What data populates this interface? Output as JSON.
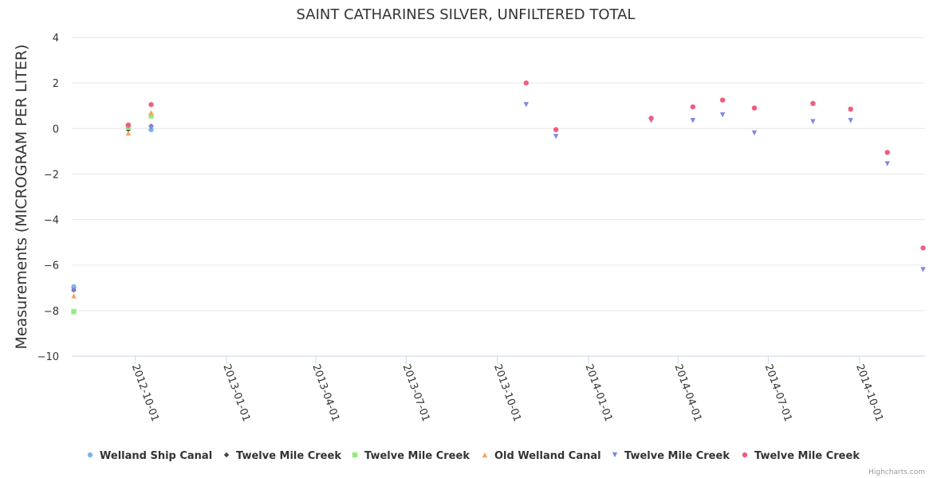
{
  "credits": "Highcharts.com",
  "chart_data": {
    "type": "scatter",
    "title": "SAINT CATHARINES SILVER, UNFILTERED TOTAL",
    "ylabel": "Measurements (MICROGRAM PER LITER)",
    "xlabel": "",
    "ylim": [
      -10,
      4
    ],
    "y_ticks": [
      4,
      2,
      0,
      -2,
      -4,
      -6,
      -8,
      -10
    ],
    "y_tick_labels": [
      "4",
      "2",
      "0",
      "−2",
      "−4",
      "−6",
      "−8",
      "−10"
    ],
    "x_range": [
      "2012-07-29",
      "2014-12-06"
    ],
    "x_ticks": [
      "2012-10-01",
      "2013-01-01",
      "2013-04-01",
      "2013-07-01",
      "2013-10-01",
      "2014-01-01",
      "2014-04-01",
      "2014-07-01",
      "2014-10-01"
    ],
    "grid": true,
    "legend_position": "bottom",
    "series": [
      {
        "name": "Welland Ship Canal",
        "color": "#7cb5ec",
        "marker": "circle",
        "points": [
          {
            "x": "2012-07-31",
            "y": -6.95
          },
          {
            "x": "2012-09-24",
            "y": 0.05
          },
          {
            "x": "2012-10-17",
            "y": -0.05
          }
        ]
      },
      {
        "name": "Twelve Mile Creek",
        "color": "#434348",
        "marker": "diamond",
        "points": [
          {
            "x": "2012-07-31",
            "y": -7.1
          },
          {
            "x": "2012-09-24",
            "y": -0.05
          },
          {
            "x": "2012-10-17",
            "y": 0.1
          }
        ]
      },
      {
        "name": "Twelve Mile Creek",
        "color": "#90ed7d",
        "marker": "square",
        "points": [
          {
            "x": "2012-07-31",
            "y": -8.05
          },
          {
            "x": "2012-09-24",
            "y": 0.05
          },
          {
            "x": "2012-10-17",
            "y": 0.55
          }
        ]
      },
      {
        "name": "Old Welland Canal",
        "color": "#f7a35c",
        "marker": "triangle",
        "points": [
          {
            "x": "2012-07-31",
            "y": -7.35
          },
          {
            "x": "2012-09-24",
            "y": -0.2
          },
          {
            "x": "2012-10-17",
            "y": 0.7
          }
        ]
      },
      {
        "name": "Twelve Mile Creek",
        "color": "#8085e9",
        "marker": "triangle-down",
        "points": [
          {
            "x": "2012-07-31",
            "y": -7.1
          },
          {
            "x": "2012-09-24",
            "y": 0.1
          },
          {
            "x": "2012-10-17",
            "y": 0.05
          },
          {
            "x": "2013-10-30",
            "y": 1.05
          },
          {
            "x": "2013-11-29",
            "y": -0.35
          },
          {
            "x": "2014-03-05",
            "y": 0.35
          },
          {
            "x": "2014-04-16",
            "y": 0.35
          },
          {
            "x": "2014-05-16",
            "y": 0.6
          },
          {
            "x": "2014-06-17",
            "y": -0.2
          },
          {
            "x": "2014-08-15",
            "y": 0.3
          },
          {
            "x": "2014-09-22",
            "y": 0.35
          },
          {
            "x": "2014-10-29",
            "y": -1.55
          },
          {
            "x": "2014-12-04",
            "y": -6.2
          }
        ]
      },
      {
        "name": "Twelve Mile Creek",
        "color": "#f15c80",
        "marker": "circle",
        "points": [
          {
            "x": "2012-09-24",
            "y": 0.15
          },
          {
            "x": "2012-10-17",
            "y": 1.05
          },
          {
            "x": "2013-10-30",
            "y": 2.0
          },
          {
            "x": "2013-11-29",
            "y": -0.05
          },
          {
            "x": "2014-03-05",
            "y": 0.45
          },
          {
            "x": "2014-04-16",
            "y": 0.95
          },
          {
            "x": "2014-05-16",
            "y": 1.25
          },
          {
            "x": "2014-06-17",
            "y": 0.9
          },
          {
            "x": "2014-08-15",
            "y": 1.1
          },
          {
            "x": "2014-09-22",
            "y": 0.85
          },
          {
            "x": "2014-10-29",
            "y": -1.05
          },
          {
            "x": "2014-12-04",
            "y": -5.25
          }
        ]
      }
    ]
  }
}
